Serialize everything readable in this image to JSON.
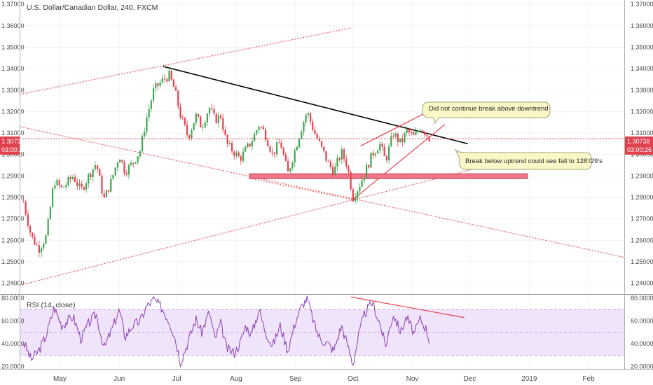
{
  "chart_data": [
    {
      "type": "candlestick",
      "title": "U.S. Dollar/Canadian Dollar, 240, FXCM",
      "x_labels": [
        "May",
        "Jun",
        "Jul",
        "Aug",
        "Sep",
        "Oct",
        "Nov",
        "Dec",
        "2019",
        "Feb"
      ],
      "y_ticks": [
        "1.24000",
        "1.25000",
        "1.26000",
        "1.27000",
        "1.28000",
        "1.29000",
        "1.30000",
        "1.31000",
        "1.32000",
        "1.33000",
        "1.34000",
        "1.35000",
        "1.36000",
        "1.37000"
      ],
      "ylim": [
        1.235,
        1.372
      ],
      "last_price": "1.30738",
      "countdown": "03:00:26",
      "price_path": [
        [
          "2018-04-12",
          1.278
        ],
        [
          "2018-04-16",
          1.262
        ],
        [
          "2018-04-20",
          1.256
        ],
        [
          "2018-04-24",
          1.262
        ],
        [
          "2018-04-28",
          1.288
        ],
        [
          "2018-05-02",
          1.284
        ],
        [
          "2018-05-08",
          1.29
        ],
        [
          "2018-05-12",
          1.283
        ],
        [
          "2018-05-16",
          1.29
        ],
        [
          "2018-05-20",
          1.296
        ],
        [
          "2018-05-24",
          1.279
        ],
        [
          "2018-05-28",
          1.288
        ],
        [
          "2018-06-01",
          1.3
        ],
        [
          "2018-06-04",
          1.292
        ],
        [
          "2018-06-08",
          1.296
        ],
        [
          "2018-06-12",
          1.302
        ],
        [
          "2018-06-15",
          1.316
        ],
        [
          "2018-06-19",
          1.33
        ],
        [
          "2018-06-23",
          1.334
        ],
        [
          "2018-06-27",
          1.337
        ],
        [
          "2018-06-30",
          1.33
        ],
        [
          "2018-07-03",
          1.318
        ],
        [
          "2018-07-07",
          1.308
        ],
        [
          "2018-07-11",
          1.318
        ],
        [
          "2018-07-14",
          1.313
        ],
        [
          "2018-07-18",
          1.322
        ],
        [
          "2018-07-21",
          1.316
        ],
        [
          "2018-07-24",
          1.318
        ],
        [
          "2018-07-27",
          1.305
        ],
        [
          "2018-07-31",
          1.301
        ],
        [
          "2018-08-03",
          1.298
        ],
        [
          "2018-08-06",
          1.302
        ],
        [
          "2018-08-09",
          1.306
        ],
        [
          "2018-08-13",
          1.314
        ],
        [
          "2018-08-16",
          1.31
        ],
        [
          "2018-08-20",
          1.3
        ],
        [
          "2018-08-24",
          1.306
        ],
        [
          "2018-08-28",
          1.291
        ],
        [
          "2018-09-01",
          1.303
        ],
        [
          "2018-09-04",
          1.312
        ],
        [
          "2018-09-07",
          1.32
        ],
        [
          "2018-09-11",
          1.31
        ],
        [
          "2018-09-14",
          1.304
        ],
        [
          "2018-09-18",
          1.296
        ],
        [
          "2018-09-21",
          1.292
        ],
        [
          "2018-09-25",
          1.301
        ],
        [
          "2018-09-28",
          1.295
        ],
        [
          "2018-10-01",
          1.28
        ],
        [
          "2018-10-04",
          1.285
        ],
        [
          "2018-10-07",
          1.291
        ],
        [
          "2018-10-11",
          1.3
        ],
        [
          "2018-10-15",
          1.305
        ],
        [
          "2018-10-18",
          1.297
        ],
        [
          "2018-10-22",
          1.31
        ],
        [
          "2018-10-26",
          1.305
        ],
        [
          "2018-10-29",
          1.311
        ],
        [
          "2018-11-02",
          1.308
        ],
        [
          "2018-11-05",
          1.313
        ],
        [
          "2018-11-08",
          1.31
        ],
        [
          "2018-11-10",
          1.30738
        ]
      ]
    },
    {
      "type": "line",
      "title": "RSI (14, close)",
      "y_ticks": [
        "20.0000",
        "40.0000",
        "60.0000",
        "80.0000"
      ],
      "ylim": [
        18,
        83
      ],
      "band": [
        30,
        70
      ],
      "series": [
        {
          "values": [
            [
              "2018-04-12",
              42
            ],
            [
              "2018-04-16",
              26
            ],
            [
              "2018-04-20",
              34
            ],
            [
              "2018-04-24",
              48
            ],
            [
              "2018-04-28",
              72
            ],
            [
              "2018-05-02",
              56
            ],
            [
              "2018-05-08",
              64
            ],
            [
              "2018-05-12",
              44
            ],
            [
              "2018-05-16",
              58
            ],
            [
              "2018-05-20",
              66
            ],
            [
              "2018-05-24",
              36
            ],
            [
              "2018-05-28",
              52
            ],
            [
              "2018-06-01",
              70
            ],
            [
              "2018-06-04",
              46
            ],
            [
              "2018-06-08",
              56
            ],
            [
              "2018-06-12",
              60
            ],
            [
              "2018-06-15",
              72
            ],
            [
              "2018-06-19",
              79
            ],
            [
              "2018-06-23",
              72
            ],
            [
              "2018-06-27",
              60
            ],
            [
              "2018-06-30",
              46
            ],
            [
              "2018-07-03",
              24
            ],
            [
              "2018-07-07",
              42
            ],
            [
              "2018-07-11",
              62
            ],
            [
              "2018-07-14",
              50
            ],
            [
              "2018-07-18",
              68
            ],
            [
              "2018-07-21",
              44
            ],
            [
              "2018-07-24",
              58
            ],
            [
              "2018-07-27",
              36
            ],
            [
              "2018-07-31",
              32
            ],
            [
              "2018-08-03",
              40
            ],
            [
              "2018-08-06",
              56
            ],
            [
              "2018-08-09",
              48
            ],
            [
              "2018-08-13",
              70
            ],
            [
              "2018-08-16",
              52
            ],
            [
              "2018-08-20",
              38
            ],
            [
              "2018-08-24",
              56
            ],
            [
              "2018-08-28",
              34
            ],
            [
              "2018-09-01",
              60
            ],
            [
              "2018-09-04",
              72
            ],
            [
              "2018-09-07",
              80
            ],
            [
              "2018-09-11",
              56
            ],
            [
              "2018-09-14",
              44
            ],
            [
              "2018-09-18",
              40
            ],
            [
              "2018-09-21",
              34
            ],
            [
              "2018-09-25",
              56
            ],
            [
              "2018-09-28",
              40
            ],
            [
              "2018-10-01",
              22
            ],
            [
              "2018-10-04",
              48
            ],
            [
              "2018-10-07",
              66
            ],
            [
              "2018-10-11",
              76
            ],
            [
              "2018-10-15",
              58
            ],
            [
              "2018-10-18",
              38
            ],
            [
              "2018-10-22",
              66
            ],
            [
              "2018-10-26",
              50
            ],
            [
              "2018-10-29",
              64
            ],
            [
              "2018-11-02",
              48
            ],
            [
              "2018-11-05",
              62
            ],
            [
              "2018-11-08",
              54
            ],
            [
              "2018-11-10",
              42
            ]
          ]
        }
      ]
    }
  ],
  "annotations": {
    "note_top": "Did not continue break above downtrend",
    "note_bottom": "Break below uptrend could see fall to 128'/29's"
  },
  "colors": {
    "up": "#3fa652",
    "down": "#e8414f",
    "rsi_line": "#8a3fb4",
    "rsi_band": "#f0e4fb",
    "trend": "#000000",
    "channel": "#e8414f",
    "support": "#f0778a",
    "price_badge": "#e0414f",
    "note_fill": "#fbf7c6"
  }
}
